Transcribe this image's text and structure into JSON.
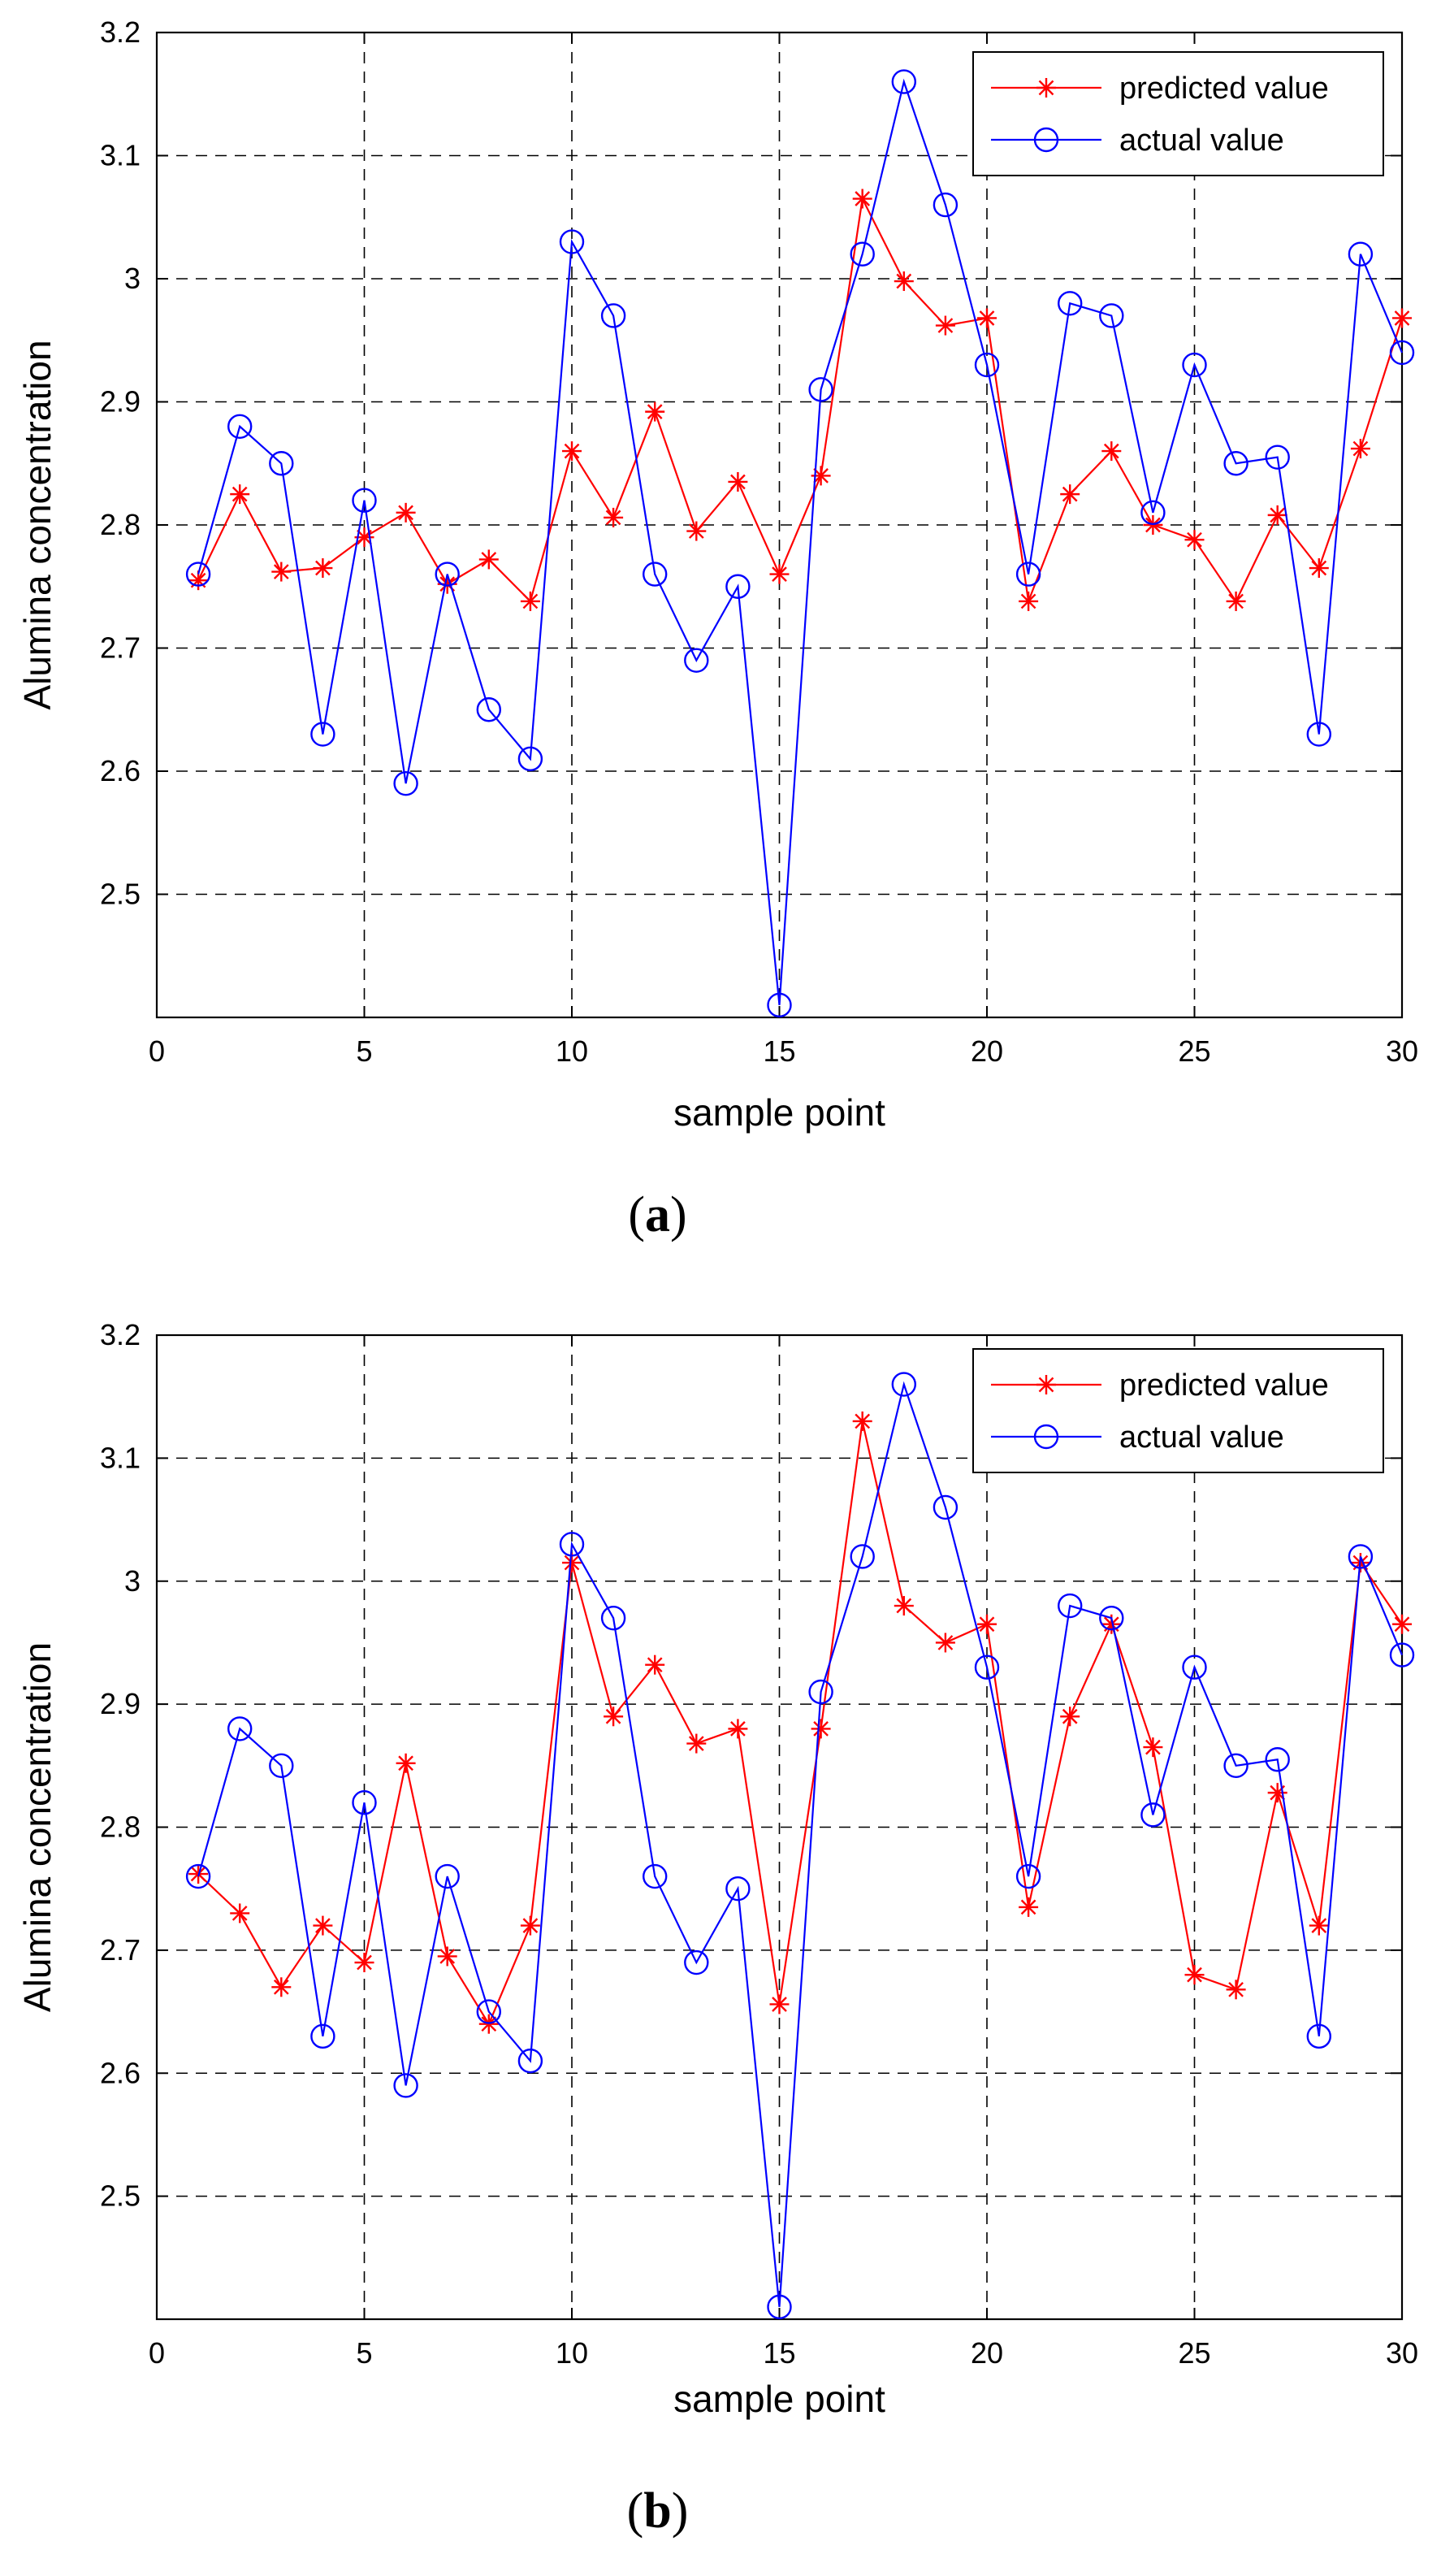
{
  "chart_data": [
    {
      "type": "line",
      "panel": "a",
      "caption_open": "(",
      "caption_letter": "a",
      "caption_close": ")",
      "xlabel": "sample point",
      "ylabel": "Alumina concentration",
      "xlim": [
        0,
        30
      ],
      "ylim": [
        2.4,
        3.2
      ],
      "xticks": [
        0,
        5,
        10,
        15,
        20,
        25,
        30
      ],
      "yticks": [
        2.5,
        2.6,
        2.7,
        2.8,
        2.9,
        3.0,
        3.1,
        3.2
      ],
      "ytick_labels": [
        "2.5",
        "2.6",
        "2.7",
        "2.8",
        "2.9",
        "3",
        "3.1",
        "3.2"
      ],
      "grid": true,
      "legend_position": "top-right",
      "x": [
        1,
        2,
        3,
        4,
        5,
        6,
        7,
        8,
        9,
        10,
        11,
        12,
        13,
        14,
        15,
        16,
        17,
        18,
        19,
        20,
        21,
        22,
        23,
        24,
        25,
        26,
        27,
        28,
        29,
        30
      ],
      "series": [
        {
          "name": "predicted value",
          "color": "#ff0000",
          "marker": "asterisk",
          "values": [
            2.755,
            2.825,
            2.762,
            2.765,
            2.79,
            2.81,
            2.752,
            2.772,
            2.738,
            2.86,
            2.806,
            2.892,
            2.795,
            2.835,
            2.76,
            2.84,
            3.065,
            2.998,
            2.962,
            2.968,
            2.738,
            2.825,
            2.86,
            2.8,
            2.788,
            2.738,
            2.808,
            2.765,
            2.862,
            2.968
          ]
        },
        {
          "name": "actual value",
          "color": "#0000ff",
          "marker": "circle",
          "values": [
            2.76,
            2.88,
            2.85,
            2.63,
            2.82,
            2.59,
            2.76,
            2.65,
            2.61,
            3.03,
            2.97,
            2.76,
            2.69,
            2.75,
            2.41,
            2.91,
            3.02,
            3.16,
            3.06,
            2.93,
            2.76,
            2.98,
            2.97,
            2.81,
            2.93,
            2.85,
            2.855,
            2.63,
            3.02,
            2.94
          ]
        }
      ]
    },
    {
      "type": "line",
      "panel": "b",
      "caption_open": "(",
      "caption_letter": "b",
      "caption_close": ")",
      "xlabel": "sample point",
      "ylabel": "Alumina concentration",
      "xlim": [
        0,
        30
      ],
      "ylim": [
        2.4,
        3.2
      ],
      "xticks": [
        0,
        5,
        10,
        15,
        20,
        25,
        30
      ],
      "yticks": [
        2.5,
        2.6,
        2.7,
        2.8,
        2.9,
        3.0,
        3.1,
        3.2
      ],
      "ytick_labels": [
        "2.5",
        "2.6",
        "2.7",
        "2.8",
        "2.9",
        "3",
        "3.1",
        "3.2"
      ],
      "grid": true,
      "legend_position": "top-right",
      "x": [
        1,
        2,
        3,
        4,
        5,
        6,
        7,
        8,
        9,
        10,
        11,
        12,
        13,
        14,
        15,
        16,
        17,
        18,
        19,
        20,
        21,
        22,
        23,
        24,
        25,
        26,
        27,
        28,
        29,
        30
      ],
      "series": [
        {
          "name": "predicted value",
          "color": "#ff0000",
          "marker": "asterisk",
          "values": [
            2.762,
            2.73,
            2.67,
            2.72,
            2.69,
            2.852,
            2.695,
            2.64,
            2.72,
            3.015,
            2.89,
            2.932,
            2.868,
            2.88,
            2.656,
            2.88,
            3.13,
            2.98,
            2.95,
            2.965,
            2.735,
            2.89,
            2.965,
            2.865,
            2.68,
            2.668,
            2.828,
            2.72,
            3.015,
            2.965
          ]
        },
        {
          "name": "actual value",
          "color": "#0000ff",
          "marker": "circle",
          "values": [
            2.76,
            2.88,
            2.85,
            2.63,
            2.82,
            2.59,
            2.76,
            2.65,
            2.61,
            3.03,
            2.97,
            2.76,
            2.69,
            2.75,
            2.41,
            2.91,
            3.02,
            3.16,
            3.06,
            2.93,
            2.76,
            2.98,
            2.97,
            2.81,
            2.93,
            2.85,
            2.855,
            2.63,
            3.02,
            2.94
          ]
        }
      ]
    }
  ]
}
